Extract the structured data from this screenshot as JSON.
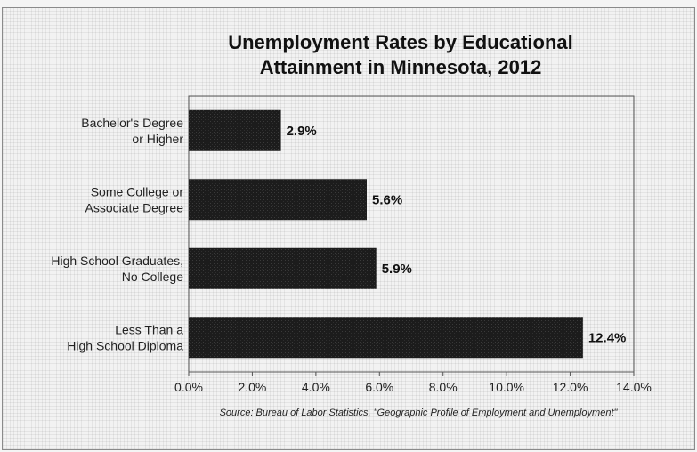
{
  "chart_data": {
    "type": "bar",
    "orientation": "horizontal",
    "title": "Unemployment Rates by Educational Attainment in Minnesota, 2012",
    "categories": [
      [
        "Bachelor's Degree",
        "or Higher"
      ],
      [
        "Some College or",
        "Associate Degree"
      ],
      [
        "High School Graduates,",
        "No College"
      ],
      [
        "Less Than a",
        "High School Diploma"
      ]
    ],
    "values": [
      2.9,
      5.6,
      5.9,
      12.4
    ],
    "value_labels": [
      "2.9%",
      "5.6%",
      "5.9%",
      "12.4%"
    ],
    "xlim": [
      0,
      14
    ],
    "xticks": [
      "0.0%",
      "2.0%",
      "4.0%",
      "6.0%",
      "8.0%",
      "10.0%",
      "12.0%",
      "14.0%"
    ],
    "xlabel": "",
    "ylabel": "",
    "grid": false,
    "bar_color": "#1a1a1a",
    "source": "Source: Bureau of Labor Statistics, \"Geographic Profile of Employment and Unemployment\""
  }
}
